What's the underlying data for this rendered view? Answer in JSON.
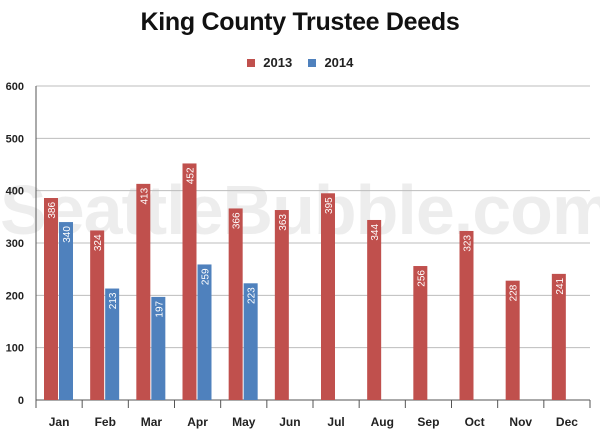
{
  "chart_data": {
    "type": "bar",
    "title": "King County Trustee Deeds",
    "categories": [
      "Jan",
      "Feb",
      "Mar",
      "Apr",
      "May",
      "Jun",
      "Jul",
      "Aug",
      "Sep",
      "Oct",
      "Nov",
      "Dec"
    ],
    "series": [
      {
        "name": "2013",
        "color": "#c0504d",
        "values": [
          386,
          324,
          413,
          452,
          366,
          363,
          395,
          344,
          256,
          323,
          228,
          241
        ]
      },
      {
        "name": "2014",
        "color": "#4f81bd",
        "values": [
          340,
          213,
          197,
          259,
          223,
          null,
          null,
          null,
          null,
          null,
          null,
          null
        ]
      }
    ],
    "ylim": [
      0,
      600
    ],
    "yticks": [
      "0",
      "100",
      "200",
      "300",
      "400",
      "500",
      "600"
    ],
    "ytick_values": [
      0,
      100,
      200,
      300,
      400,
      500,
      600
    ],
    "grid": true,
    "legend_position": "top-center",
    "data_labels": "inside-bar-top-rotated"
  },
  "watermark": "SeattleBubble.com"
}
